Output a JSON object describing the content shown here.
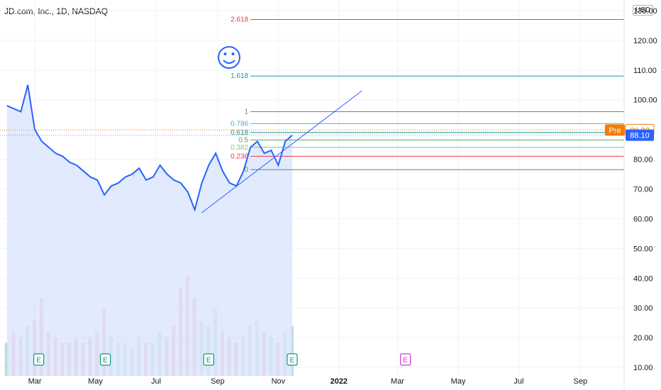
{
  "header": {
    "symbol_title": "JD.com, Inc., 1D, NASDAQ",
    "currency": "USD"
  },
  "colors": {
    "price_line": "#2962ff",
    "area_fill": "#dbe5fd",
    "pre_badge": "#f57c00",
    "last_badge": "#2962ff",
    "volume_up": "#b7dfd9",
    "volume_down": "#f5b5b8",
    "earnings": "#089981",
    "earnings_future": "#d633d6"
  },
  "chart_data": {
    "type": "line",
    "x": [
      "2021-02-01",
      "2021-02-08",
      "2021-02-15",
      "2021-02-22",
      "2021-03-01",
      "2021-03-08",
      "2021-03-15",
      "2021-03-22",
      "2021-03-29",
      "2021-04-05",
      "2021-04-12",
      "2021-04-19",
      "2021-04-26",
      "2021-05-03",
      "2021-05-10",
      "2021-05-17",
      "2021-05-24",
      "2021-05-31",
      "2021-06-07",
      "2021-06-14",
      "2021-06-21",
      "2021-06-28",
      "2021-07-05",
      "2021-07-12",
      "2021-07-19",
      "2021-07-26",
      "2021-08-02",
      "2021-08-09",
      "2021-08-16",
      "2021-08-23",
      "2021-08-30",
      "2021-09-06",
      "2021-09-13",
      "2021-09-20",
      "2021-09-27",
      "2021-10-04",
      "2021-10-11",
      "2021-10-18",
      "2021-10-25",
      "2021-11-01",
      "2021-11-08",
      "2021-11-15"
    ],
    "series": [
      {
        "values": [
          98,
          97,
          96,
          105,
          90,
          86,
          84,
          82,
          81,
          79,
          78,
          76,
          74,
          73,
          68,
          71,
          72,
          74,
          75,
          77,
          73,
          74,
          78,
          75,
          73,
          72,
          69,
          63,
          72,
          78,
          82,
          76,
          72,
          71,
          76,
          84,
          86,
          82,
          83,
          78,
          86,
          88.1
        ]
      }
    ],
    "volume": [
      6,
      8,
      7,
      9,
      10,
      14,
      8,
      7,
      6,
      6,
      7,
      6,
      7,
      8,
      12,
      7,
      6,
      6,
      5,
      7,
      6,
      6,
      8,
      7,
      9,
      16,
      18,
      14,
      10,
      9,
      12,
      8,
      7,
      6,
      7,
      9,
      10,
      8,
      7,
      6,
      8,
      9
    ],
    "xlim": [
      "2021-01-25",
      "2022-10-15"
    ],
    "ylim": [
      8,
      133
    ],
    "y_ticks": [
      "130.00",
      "120.00",
      "110.00",
      "100.00",
      "90.00",
      "80.00",
      "70.00",
      "60.00",
      "50.00",
      "40.00",
      "30.00",
      "20.00",
      "10.00"
    ],
    "x_ticks": [
      "Mar",
      "May",
      "Jul",
      "Sep",
      "Nov",
      "2022",
      "Mar",
      "May",
      "Jul",
      "Sep"
    ],
    "last_price": "88.10",
    "pre_label": "Pre",
    "pre_price": "89.82",
    "fib_levels": [
      {
        "ratio": "2.618",
        "price": 127,
        "color": "#f23645"
      },
      {
        "ratio": "1.618",
        "price": 108,
        "color": "#2196a3"
      },
      {
        "ratio": "1",
        "price": 96,
        "color": "#787b86"
      },
      {
        "ratio": "0.786",
        "price": 92,
        "color": "#5aa5d0"
      },
      {
        "ratio": "0.618",
        "price": 89,
        "color": "#089981"
      },
      {
        "ratio": "0.5",
        "price": 86.5,
        "color": "#4caf50"
      },
      {
        "ratio": "0.382",
        "price": 84,
        "color": "#81c784"
      },
      {
        "ratio": "0.236",
        "price": 81,
        "color": "#f23645"
      },
      {
        "ratio": "0",
        "price": 76.5,
        "color": "#787b86"
      }
    ],
    "trendline": {
      "from": {
        "x": "2021-08-16",
        "y": 62
      },
      "to": {
        "x": "2022-01-24",
        "y": 103
      }
    },
    "earnings_markers": [
      {
        "x": "2021-03-05",
        "label": "E",
        "future": false
      },
      {
        "x": "2021-05-11",
        "label": "E",
        "future": false
      },
      {
        "x": "2021-08-23",
        "label": "E",
        "future": false
      },
      {
        "x": "2021-11-15",
        "label": "E",
        "future": false
      },
      {
        "x": "2022-03-09",
        "label": "E",
        "future": true
      }
    ]
  }
}
